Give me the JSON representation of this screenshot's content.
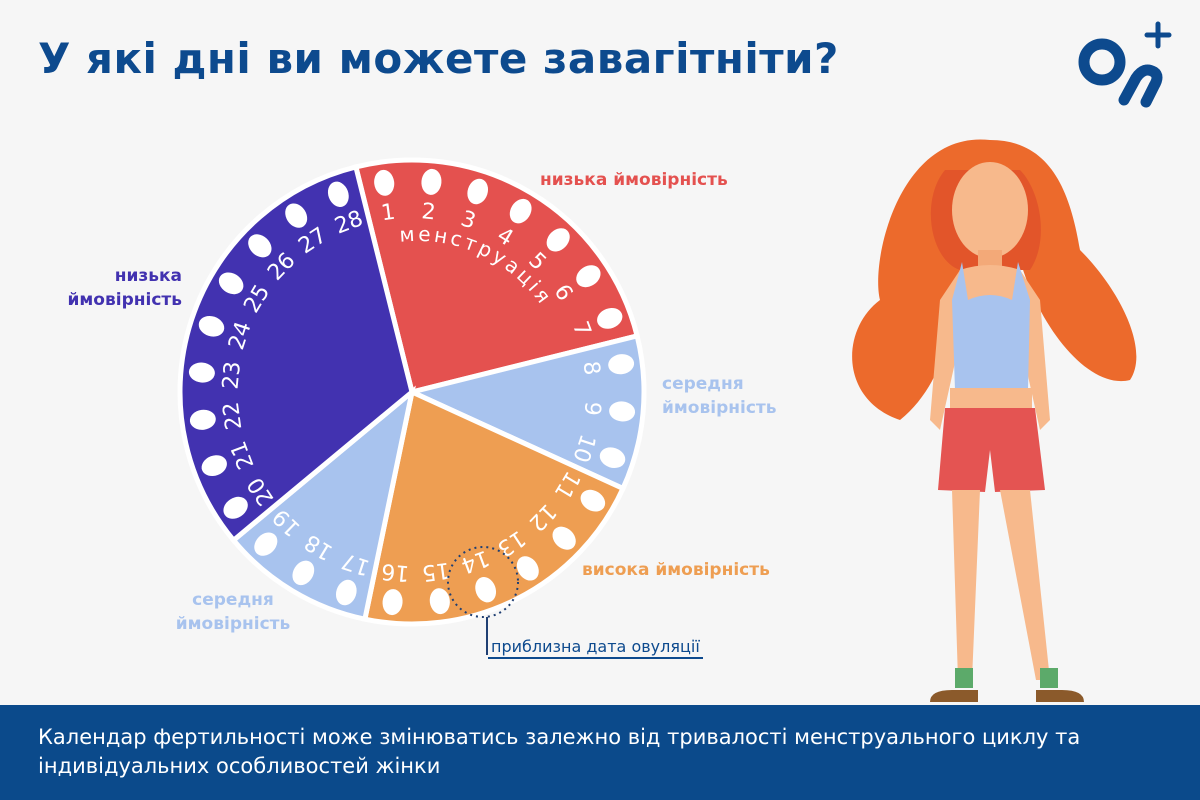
{
  "title": "У які дні ви можете завагітніти?",
  "segments": [
    {
      "label": "низька ймовірність",
      "sublabel": "менструація",
      "color": "#e4514f",
      "days": [
        1,
        2,
        3,
        4,
        5,
        6,
        7
      ]
    },
    {
      "label": "середня ймовірність",
      "color": "#a8c3ee",
      "days": [
        8,
        9,
        10
      ]
    },
    {
      "label": "висока ймовірність",
      "color": "#ee9e52",
      "days": [
        11,
        12,
        13,
        14,
        15,
        16
      ]
    },
    {
      "label": "середня ймовірність",
      "color": "#a8c3ee",
      "days": [
        17,
        18,
        19
      ]
    },
    {
      "label": "низька ймовірність",
      "color": "#4232b0",
      "days": [
        20,
        21,
        22,
        23,
        24,
        25,
        26,
        27,
        28
      ]
    }
  ],
  "ovulation_label": "приблизна дата овуляції",
  "footer": "Календар фертильності може змінюватись залежно від тривалості менструального циклу та індивідуальних особливостей жінки"
}
